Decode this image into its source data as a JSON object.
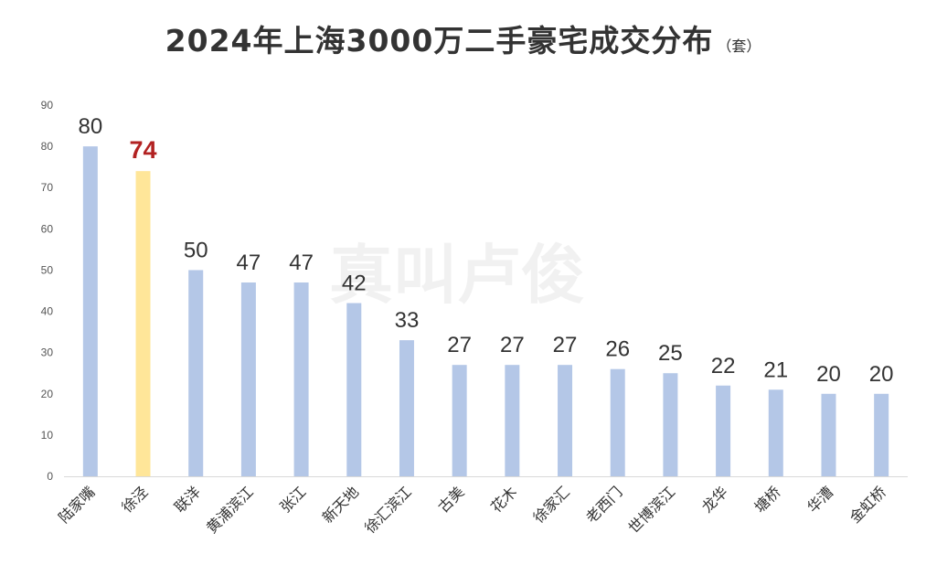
{
  "title": "2024年上海3000万二手豪宅成交分布",
  "unit": "（套）",
  "watermark": "真叫卢俊",
  "colors": {
    "bar": "#b4c7e7",
    "highlight_bar": "#ffe699",
    "highlight_label": "#b22222",
    "axis": "#d9d9d9"
  },
  "chart_data": {
    "type": "bar",
    "title": "2024年上海3000万二手豪宅成交分布",
    "xlabel": "",
    "ylabel": "",
    "ylim": [
      0,
      90
    ],
    "yticks": [
      0,
      10,
      20,
      30,
      40,
      50,
      60,
      70,
      80,
      90
    ],
    "grid": false,
    "categories": [
      "陆家嘴",
      "徐泾",
      "联洋",
      "黄浦滨江",
      "张江",
      "新天地",
      "徐汇滨江",
      "古美",
      "花木",
      "徐家汇",
      "老西门",
      "世博滨江",
      "龙华",
      "塘桥",
      "华漕",
      "金虹桥"
    ],
    "values": [
      80,
      74,
      50,
      47,
      47,
      42,
      33,
      27,
      27,
      27,
      26,
      25,
      22,
      21,
      20,
      20
    ],
    "highlight_index": 1
  }
}
